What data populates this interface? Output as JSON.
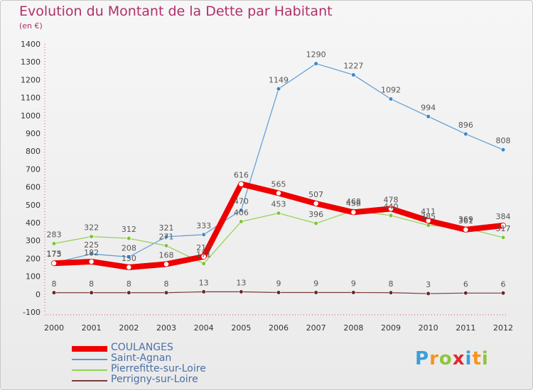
{
  "title": "Evolution du Montant de la Dette par Habitant",
  "unit": "(en €)",
  "logo": {
    "text": "Proxiti",
    "colors": [
      "#3a9fd8",
      "#f7941d",
      "#8cc63f",
      "#e2282d",
      "#3a9fd8",
      "#f7941d",
      "#8cc63f"
    ]
  },
  "chart_data": {
    "type": "line",
    "categories": [
      "2000",
      "2001",
      "2002",
      "2003",
      "2004",
      "2005",
      "2006",
      "2007",
      "2008",
      "2009",
      "2010",
      "2011",
      "2012"
    ],
    "ylim": [
      -100,
      1400
    ],
    "yticks": [
      -100,
      0,
      100,
      200,
      300,
      400,
      500,
      600,
      700,
      800,
      900,
      1000,
      1100,
      1200,
      1300,
      1400
    ],
    "grid": false,
    "legend_position": "bottom-left",
    "series": [
      {
        "name": "Saint-Agnan",
        "color": "#5a9bd5",
        "width": 1.2,
        "dot": 2.8,
        "dotColor": "#3b86c9",
        "values": [
          175,
          225,
          208,
          321,
          333,
          470,
          1149,
          1290,
          1227,
          1092,
          994,
          896,
          808
        ],
        "labels": [
          "175",
          "225",
          "208",
          "321",
          "333",
          "470",
          "1149",
          "1290",
          "1227",
          "1092",
          "994",
          "896",
          "808"
        ]
      },
      {
        "name": "Pierrefitte-sur-Loire",
        "color": "#92d050",
        "width": 1.2,
        "dot": 2.8,
        "dotColor": "#7cc335",
        "values": [
          283,
          322,
          312,
          271,
          171,
          406,
          453,
          396,
          468,
          440,
          385,
          369,
          317
        ],
        "labels": [
          "283",
          "322",
          "312",
          "271",
          "171",
          "406",
          "453",
          "396",
          "468",
          "440",
          "385",
          "369",
          "317"
        ]
      },
      {
        "name": "Perrigny-sur-Loire",
        "color": "#7a3a3a",
        "width": 1.2,
        "dot": 2.8,
        "dotColor": "#6a2727",
        "values": [
          8,
          8,
          8,
          8,
          13,
          13,
          9,
          9,
          9,
          8,
          3,
          6,
          6
        ],
        "labels": [
          "8",
          "8",
          "8",
          "8",
          "13",
          "13",
          "9",
          "9",
          "9",
          "8",
          "3",
          "6",
          "6"
        ]
      },
      {
        "name": "COULANGES",
        "color": "#ee0000",
        "width": 8,
        "dot": 3.2,
        "dotColor": "#ffffff",
        "values": [
          173,
          182,
          150,
          168,
          210,
          616,
          565,
          507,
          458,
          478,
          411,
          361,
          384
        ],
        "labels": [
          "173",
          "182",
          "150",
          "168",
          "210",
          "616",
          "565",
          "507",
          "458",
          "478",
          "411",
          "361",
          "384"
        ]
      }
    ],
    "legend": [
      {
        "name": "COULANGES",
        "color": "#ee0000",
        "width": 8
      },
      {
        "name": "Saint-Agnan",
        "color": "#5a9bd5",
        "width": 1.5
      },
      {
        "name": "Pierrefitte-sur-Loire",
        "color": "#92d050",
        "width": 1.5
      },
      {
        "name": "Perrigny-sur-Loire",
        "color": "#7a3a3a",
        "width": 1.5
      }
    ]
  }
}
